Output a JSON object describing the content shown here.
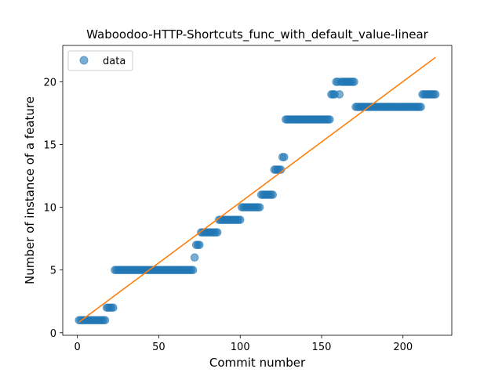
{
  "chart_data": {
    "type": "scatter",
    "title": "Waboodoo-HTTP-Shortcuts_func_with_default_value-linear",
    "xlabel": "Commit number",
    "ylabel": "Number of instance of a feature",
    "xlim": [
      -9,
      230
    ],
    "ylim": [
      -0.2,
      22.9
    ],
    "xticks": [
      0,
      50,
      100,
      150,
      200
    ],
    "yticks": [
      0,
      5,
      10,
      15,
      20
    ],
    "grid": false,
    "legend_position": "top-left",
    "series": [
      {
        "name": "data",
        "kind": "scatter",
        "color": "#1f77b4",
        "x": [
          1,
          2,
          3,
          4,
          5,
          6,
          7,
          8,
          9,
          10,
          11,
          12,
          13,
          14,
          15,
          16,
          17,
          18,
          19,
          20,
          21,
          22,
          23,
          24,
          25,
          26,
          27,
          28,
          29,
          30,
          31,
          32,
          33,
          34,
          35,
          36,
          37,
          38,
          39,
          40,
          41,
          42,
          43,
          44,
          45,
          46,
          47,
          48,
          49,
          50,
          51,
          52,
          53,
          54,
          55,
          56,
          57,
          58,
          59,
          60,
          61,
          62,
          63,
          64,
          65,
          66,
          67,
          68,
          69,
          70,
          71,
          72,
          73,
          74,
          75,
          76,
          77,
          78,
          79,
          80,
          81,
          82,
          83,
          84,
          85,
          86,
          87,
          88,
          89,
          90,
          91,
          92,
          93,
          94,
          95,
          96,
          97,
          98,
          99,
          100,
          101,
          102,
          103,
          104,
          105,
          106,
          107,
          108,
          109,
          110,
          111,
          112,
          113,
          114,
          115,
          116,
          117,
          118,
          119,
          120,
          121,
          122,
          123,
          124,
          125,
          126,
          127,
          128,
          129,
          130,
          131,
          132,
          133,
          134,
          135,
          136,
          137,
          138,
          139,
          140,
          141,
          142,
          143,
          144,
          145,
          146,
          147,
          148,
          149,
          150,
          151,
          152,
          153,
          154,
          155,
          156,
          157,
          158,
          159,
          160,
          161,
          162,
          163,
          164,
          165,
          166,
          167,
          168,
          169,
          170,
          171,
          172,
          173,
          174,
          175,
          176,
          177,
          178,
          179,
          180,
          181,
          182,
          183,
          184,
          185,
          186,
          187,
          188,
          189,
          190,
          191,
          192,
          193,
          194,
          195,
          196,
          197,
          198,
          199,
          200,
          201,
          202,
          203,
          204,
          205,
          206,
          207,
          208,
          209,
          210,
          211,
          212,
          213,
          214,
          215,
          216,
          217,
          218,
          219,
          220
        ],
        "y": [
          1,
          1,
          1,
          1,
          1,
          1,
          1,
          1,
          1,
          1,
          1,
          1,
          1,
          1,
          1,
          1,
          1,
          2,
          2,
          2,
          2,
          2,
          5,
          5,
          5,
          5,
          5,
          5,
          5,
          5,
          5,
          5,
          5,
          5,
          5,
          5,
          5,
          5,
          5,
          5,
          5,
          5,
          5,
          5,
          5,
          5,
          5,
          5,
          5,
          5,
          5,
          5,
          5,
          5,
          5,
          5,
          5,
          5,
          5,
          5,
          5,
          5,
          5,
          5,
          5,
          5,
          5,
          5,
          5,
          5,
          5,
          6,
          7,
          7,
          7,
          8,
          8,
          8,
          8,
          8,
          8,
          8,
          8,
          8,
          8,
          8,
          9,
          9,
          9,
          9,
          9,
          9,
          9,
          9,
          9,
          9,
          9,
          9,
          9,
          9,
          10,
          10,
          10,
          10,
          10,
          10,
          10,
          10,
          10,
          10,
          10,
          10,
          11,
          11,
          11,
          11,
          11,
          11,
          11,
          11,
          13,
          13,
          13,
          13,
          13,
          14,
          14,
          17,
          17,
          17,
          17,
          17,
          17,
          17,
          17,
          17,
          17,
          17,
          17,
          17,
          17,
          17,
          17,
          17,
          17,
          17,
          17,
          17,
          17,
          17,
          17,
          17,
          17,
          17,
          17,
          19,
          19,
          19,
          20,
          20,
          19,
          20,
          20,
          20,
          20,
          20,
          20,
          20,
          20,
          20,
          18,
          18,
          18,
          18,
          18,
          18,
          18,
          18,
          18,
          18,
          18,
          18,
          18,
          18,
          18,
          18,
          18,
          18,
          18,
          18,
          18,
          18,
          18,
          18,
          18,
          18,
          18,
          18,
          18,
          18,
          18,
          18,
          18,
          18,
          18,
          18,
          18,
          18,
          18,
          18,
          18,
          19,
          19,
          19,
          19,
          19,
          19,
          19,
          19,
          19
        ]
      },
      {
        "kind": "line",
        "color": "#ff7f0e",
        "x": [
          1,
          220
        ],
        "y": [
          0.85,
          21.95
        ]
      }
    ]
  }
}
